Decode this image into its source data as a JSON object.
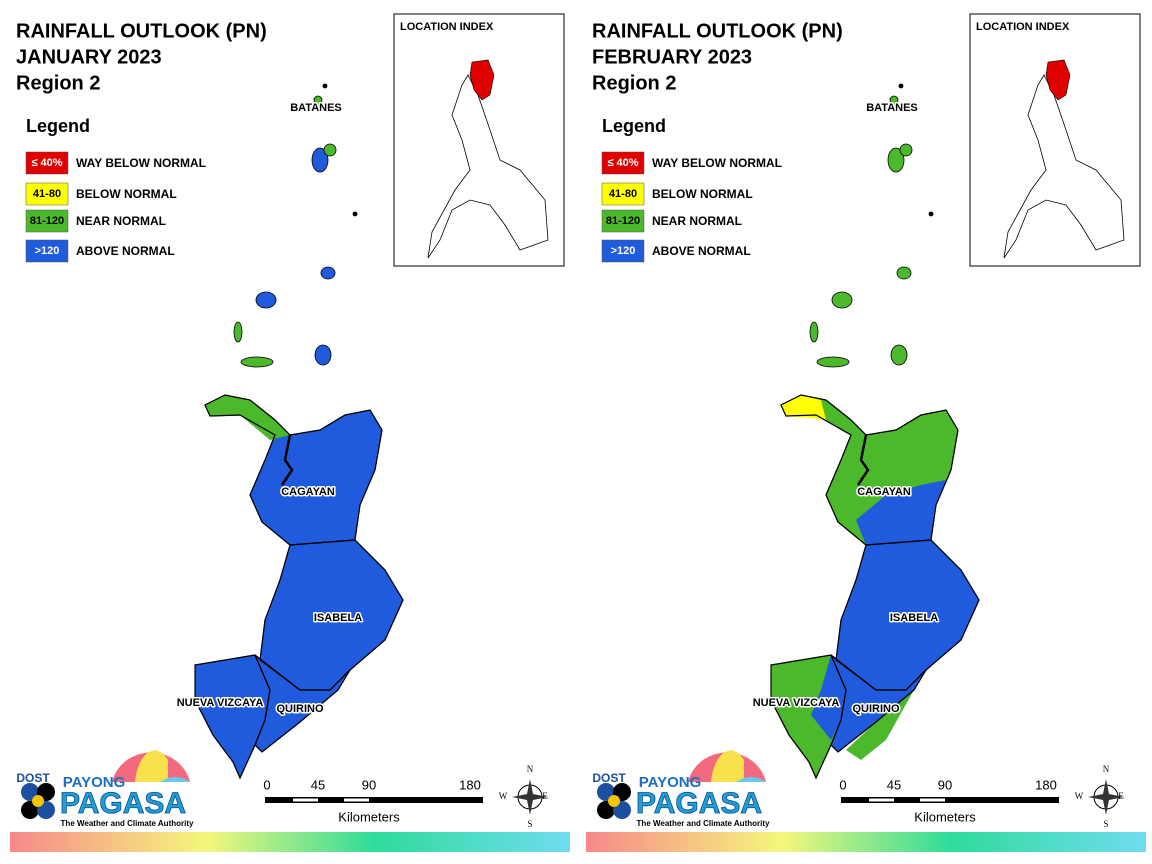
{
  "panels": [
    {
      "title": [
        "RAINFALL OUTLOOK (PN)",
        "JANUARY 2023",
        "Region 2"
      ],
      "legend_title": "Legend",
      "legend": [
        {
          "swatch": "≤ 40%",
          "label": "WAY BELOW NORMAL"
        },
        {
          "swatch": "41-80",
          "label": "BELOW NORMAL"
        },
        {
          "swatch": "81-120",
          "label": "NEAR NORMAL"
        },
        {
          "swatch": ">120",
          "label": "ABOVE NORMAL"
        }
      ],
      "location_index": "LOCATION INDEX",
      "provinces": [
        "BATANES",
        "CAGAYAN",
        "ISABELA",
        "NUEVA VIZCAYA",
        "QUIRINO"
      ],
      "scale_labels": [
        "0",
        "45",
        "90",
        "180"
      ],
      "scale_unit": "Kilometers",
      "compass": [
        "N",
        "E",
        "S",
        "W"
      ],
      "logo": [
        "DOST",
        "PAYONG",
        "PAGASA",
        "The Weather and Climate Authority"
      ]
    },
    {
      "title": [
        "RAINFALL OUTLOOK (PN)",
        "FEBRUARY 2023",
        "Region 2"
      ],
      "legend_title": "Legend",
      "legend": [
        {
          "swatch": "≤ 40%",
          "label": "WAY BELOW NORMAL"
        },
        {
          "swatch": "41-80",
          "label": "BELOW NORMAL"
        },
        {
          "swatch": "81-120",
          "label": "NEAR NORMAL"
        },
        {
          "swatch": ">120",
          "label": "ABOVE NORMAL"
        }
      ],
      "location_index": "LOCATION INDEX",
      "provinces": [
        "BATANES",
        "CAGAYAN",
        "ISABELA",
        "NUEVA VIZCAYA",
        "QUIRINO"
      ],
      "scale_labels": [
        "0",
        "45",
        "90",
        "180"
      ],
      "scale_unit": "Kilometers",
      "compass": [
        "N",
        "E",
        "S",
        "W"
      ],
      "logo": [
        "DOST",
        "PAYONG",
        "PAGASA",
        "The Weather and Climate Authority"
      ]
    }
  ]
}
